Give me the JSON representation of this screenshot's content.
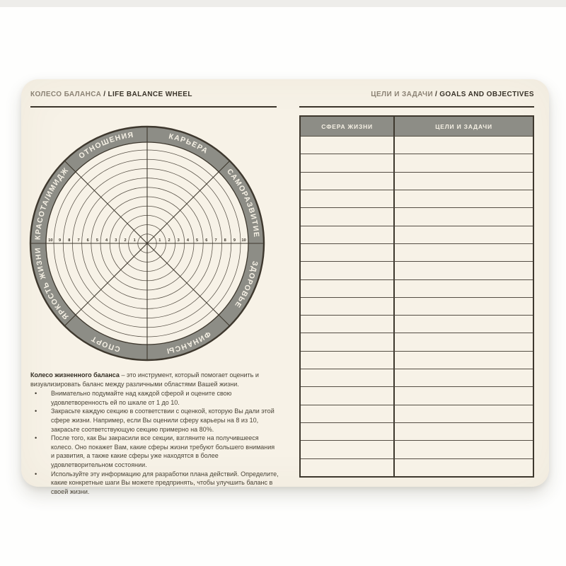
{
  "page": {
    "left_header": {
      "title_ru": "КОЛЕСО БАЛАНСА",
      "separator": "/",
      "title_en": "LIFE BALANCE WHEEL"
    },
    "right_header": {
      "title_ru": "ЦЕЛИ И ЗАДАЧИ",
      "separator": "/",
      "title_en": "GOALS AND OBJECTIVES"
    }
  },
  "wheel": {
    "sectors": [
      "КАРЬЕРА",
      "САМОРАЗВИТИЕ",
      "ЗДОРОВЬЕ",
      "ФИНАНСЫ",
      "СПОРТ",
      "ЯРКОСТЬ ЖИЗНИ",
      "КРАСОТА/ИМИДЖ",
      "ОТНОШЕНИЯ"
    ],
    "scale_min": 1,
    "scale_max": 10,
    "rings": 10,
    "colors": {
      "ring": "#8d8d86",
      "outline": "#3e382e",
      "grid": "#564f45",
      "label_text": "#f6f1e5",
      "paper": "#f7f2e7",
      "number": "#3a342a"
    }
  },
  "instructions": {
    "intro_bold": "Колесо жизненного баланса",
    "intro_rest": " – это инструмент, который помогает оценить и визуализировать баланс между различными областями Вашей жизни.",
    "bullet_char": "•",
    "bullets": [
      "Внимательно подумайте над каждой сферой и оцените свою удовлетворенность ей по шкале от 1 до 10.",
      "Закрасьте каждую секцию в соответствии с оценкой, которую Вы дали этой сфере жизни. Например, если Вы оценили сферу карьеры на 8 из 10, закрасьте соответствующую секцию примерно на 80%.",
      "После того, как Вы закрасили все секции, взгляните на получившееся колесо. Оно покажет Вам, какие сферы жизни требуют большего внимания и развития, а также какие сферы уже находятся в более удовлетворительном состоянии.",
      "Используйте эту информацию для разработки плана действий. Определите, какие конкретные шаги Вы можете предпринять, чтобы улучшить баланс в своей жизни."
    ]
  },
  "table": {
    "columns": [
      "СФЕРА ЖИЗНИ",
      "ЦЕЛИ И ЗАДАЧИ"
    ],
    "row_count": 19
  }
}
